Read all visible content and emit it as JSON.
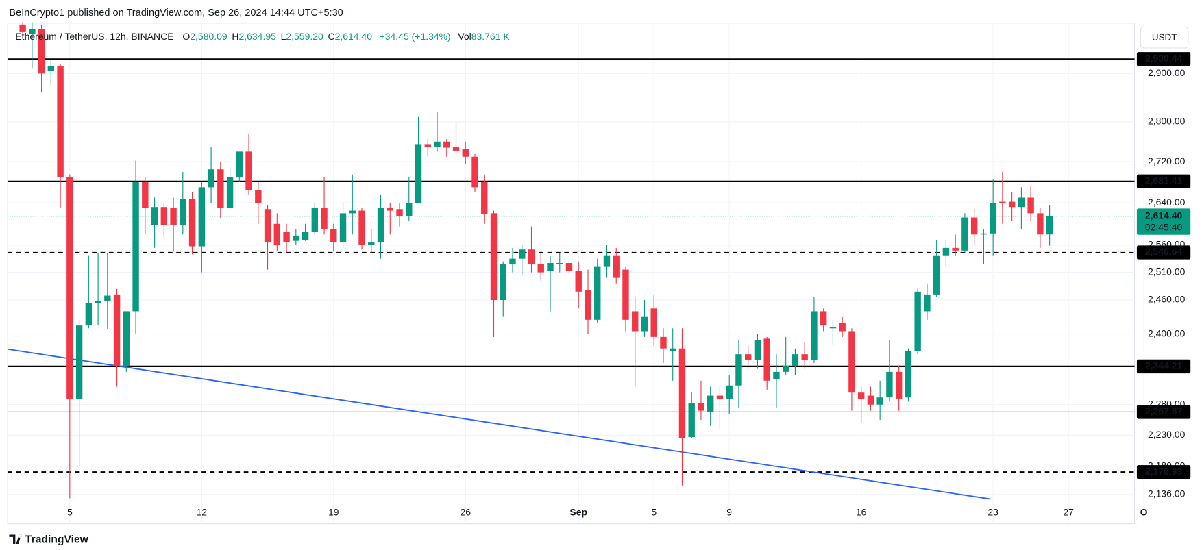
{
  "header": {
    "publisher": "BeInCrypto1 published on TradingView.com, Sep 26, 2024 14:44 UTC+5:30"
  },
  "chart_data": {
    "type": "candlestick",
    "symbol": "Ethereum / TetherUS, 12h, BINANCE",
    "ohlc_legend": [
      {
        "key": "O",
        "value": "2,580.09"
      },
      {
        "key": "H",
        "value": "2,634.95"
      },
      {
        "key": "L",
        "value": "2,559.20"
      },
      {
        "key": "C",
        "value": "2,614.40"
      }
    ],
    "change": "+34.45 (+1.34%)",
    "volume": {
      "key": "Vol",
      "value": "83.761 K"
    },
    "currency": "USDT",
    "up_color": "#089981",
    "down_color": "#f23645",
    "categories": [
      null,
      null,
      null,
      null,
      null,
      "5",
      null,
      null,
      null,
      null,
      null,
      null,
      null,
      null,
      null,
      null,
      null,
      null,
      null,
      "12",
      null,
      null,
      null,
      null,
      null,
      null,
      null,
      null,
      null,
      null,
      null,
      null,
      null,
      "19",
      null,
      null,
      null,
      null,
      null,
      null,
      null,
      null,
      null,
      null,
      null,
      null,
      null,
      "26",
      null,
      null,
      null,
      null,
      null,
      null,
      null,
      null,
      null,
      null,
      null,
      "Sep",
      null,
      null,
      null,
      null,
      null,
      null,
      null,
      "5",
      null,
      null,
      null,
      null,
      null,
      null,
      null,
      "9",
      null,
      null,
      null,
      null,
      null,
      null,
      null,
      null,
      null,
      null,
      null,
      null,
      null,
      "16",
      null,
      null,
      null,
      null,
      null,
      null,
      null,
      null,
      null,
      null,
      null,
      null,
      null,
      "23",
      null,
      null,
      null,
      null,
      null,
      null,
      null,
      "27",
      null,
      null,
      null,
      null,
      null,
      null,
      null,
      "O"
    ],
    "open": [
      3005,
      2985,
      2995,
      2905,
      2915,
      2690,
      2290,
      2415,
      2455,
      2458,
      2470,
      2345,
      2440,
      2680,
      2598,
      2632,
      2630,
      2598,
      2648,
      2558,
      2670,
      2705,
      2630,
      2690,
      2740,
      2665,
      2628,
      2600,
      2585,
      2568,
      2570,
      2585,
      2630,
      2590,
      2565,
      2620,
      2625,
      2560,
      2565,
      2630,
      2628,
      2615,
      2640,
      2755,
      2750,
      2760,
      2750,
      2745,
      2730,
      2680,
      2620,
      2460,
      2525,
      2535,
      2552,
      2525,
      2512,
      2525,
      2527,
      2512,
      2478,
      2425,
      2520,
      2540,
      2515,
      2440,
      2405,
      2445,
      2395,
      2370,
      2375,
      2227,
      2282,
      2268,
      2295,
      2290,
      2312,
      2365,
      2355,
      2392,
      2322,
      2335,
      2345,
      2365,
      2355,
      2440,
      2410,
      2420,
      2405,
      2300,
      2295,
      2280,
      2292,
      2335,
      2292,
      2370,
      2440,
      2470,
      2540,
      2555,
      2550,
      2612,
      2580,
      2582,
      2642,
      2642,
      2632,
      2650,
      2620,
      2580.09,
      null,
      null,
      null,
      null,
      null,
      null,
      null,
      null,
      null,
      null
    ],
    "high": [
      3010,
      3010,
      3005,
      2930,
      2920,
      2695,
      2425,
      2540,
      2545,
      2545,
      2480,
      2440,
      2722,
      2690,
      2650,
      2640,
      2650,
      2700,
      2660,
      2680,
      2750,
      2720,
      2710,
      2740,
      2775,
      2680,
      2635,
      2620,
      2600,
      2590,
      2600,
      2640,
      2690,
      2600,
      2640,
      2695,
      2630,
      2590,
      2655,
      2640,
      2640,
      2690,
      2810,
      2765,
      2820,
      2765,
      2800,
      2760,
      2735,
      2695,
      2625,
      2530,
      2555,
      2560,
      2595,
      2545,
      2540,
      2545,
      2535,
      2530,
      2515,
      2535,
      2560,
      2555,
      2520,
      2465,
      2460,
      2470,
      2410,
      2410,
      2410,
      2300,
      2320,
      2310,
      2310,
      2330,
      2390,
      2380,
      2400,
      2395,
      2365,
      2395,
      2375,
      2385,
      2465,
      2445,
      2425,
      2430,
      2410,
      2310,
      2310,
      2320,
      2390,
      2345,
      2375,
      2480,
      2490,
      2570,
      2570,
      2580,
      2620,
      2630,
      2590,
      2685,
      2700,
      2660,
      2670,
      2672,
      2630,
      2634.95,
      null,
      null,
      null,
      null,
      null,
      null,
      null,
      null,
      null,
      null
    ],
    "low": [
      2975,
      2910,
      2860,
      2875,
      2630,
      2130,
      2180,
      2410,
      2415,
      2408,
      2310,
      2335,
      2400,
      2580,
      2555,
      2575,
      2548,
      2580,
      2543,
      2510,
      2640,
      2610,
      2625,
      2680,
      2655,
      2600,
      2515,
      2550,
      2545,
      2560,
      2568,
      2580,
      2580,
      2548,
      2555,
      2580,
      2553,
      2545,
      2535,
      2580,
      2595,
      2605,
      2640,
      2730,
      2740,
      2730,
      2730,
      2715,
      2660,
      2600,
      2395,
      2430,
      2510,
      2505,
      2510,
      2495,
      2440,
      2510,
      2505,
      2445,
      2400,
      2420,
      2500,
      2490,
      2405,
      2310,
      2395,
      2380,
      2350,
      2320,
      2150,
      2225,
      2255,
      2245,
      2240,
      2265,
      2275,
      2340,
      2340,
      2305,
      2275,
      2330,
      2330,
      2340,
      2350,
      2405,
      2380,
      2395,
      2270,
      2250,
      2270,
      2255,
      2285,
      2270,
      2285,
      2365,
      2425,
      2465,
      2520,
      2540,
      2545,
      2560,
      2525,
      2540,
      2600,
      2605,
      2590,
      2605,
      2555,
      2559.2,
      null,
      null,
      null,
      null,
      null,
      null,
      null,
      null,
      null,
      null
    ],
    "close": [
      2990,
      2995,
      2900,
      2915,
      2690,
      2290,
      2415,
      2455,
      2458,
      2468,
      2344,
      2440,
      2680,
      2630,
      2632,
      2598,
      2598,
      2648,
      2558,
      2670,
      2705,
      2630,
      2690,
      2740,
      2665,
      2640,
      2565,
      2560,
      2565,
      2578,
      2585,
      2630,
      2590,
      2565,
      2620,
      2625,
      2560,
      2565,
      2630,
      2625,
      2615,
      2640,
      2755,
      2750,
      2760,
      2748,
      2742,
      2730,
      2670,
      2618,
      2460,
      2525,
      2535,
      2552,
      2525,
      2510,
      2527,
      2527,
      2512,
      2475,
      2425,
      2520,
      2540,
      2500,
      2425,
      2405,
      2430,
      2395,
      2375,
      2375,
      2225,
      2282,
      2270,
      2295,
      2290,
      2312,
      2365,
      2355,
      2390,
      2320,
      2335,
      2345,
      2365,
      2355,
      2440,
      2415,
      2412,
      2405,
      2300,
      2290,
      2280,
      2292,
      2335,
      2290,
      2370,
      2475,
      2470,
      2540,
      2555,
      2550,
      2612,
      2580,
      2582,
      2640,
      2640,
      2632,
      2650,
      2620,
      2580,
      2614.4,
      null,
      null,
      null,
      null,
      null,
      null,
      null,
      null,
      null,
      null
    ],
    "ylim": [
      2091,
      3008
    ],
    "log_scale": true,
    "grid": true,
    "yticks": [
      {
        "value": 2136,
        "label": "2,136.00"
      },
      {
        "value": 2180,
        "label": "2,180.00"
      },
      {
        "value": 2230,
        "label": "2,230.00"
      },
      {
        "value": 2280,
        "label": "2,280.00"
      },
      {
        "value": 2400,
        "label": "2,400.00"
      },
      {
        "value": 2460,
        "label": "2,460.00"
      },
      {
        "value": 2510,
        "label": "2,510.00"
      },
      {
        "value": 2560,
        "label": "2,560.00"
      },
      {
        "value": 2640,
        "label": "2,640.00"
      },
      {
        "value": 2720,
        "label": "2,720.00"
      },
      {
        "value": 2800,
        "label": "2,800.00"
      },
      {
        "value": 2900,
        "label": "2,900.00"
      }
    ],
    "price_lines": [
      {
        "value": 2930.44,
        "label": "2,930.44",
        "style": "solid",
        "width": 2
      },
      {
        "value": 2681.41,
        "label": "2,681.41",
        "style": "solid",
        "width": 2
      },
      {
        "value": 2546.64,
        "label": "2,546.64",
        "style": "dashed",
        "width": 1
      },
      {
        "value": 2344.21,
        "label": "2,344.21",
        "style": "solid",
        "width": 2
      },
      {
        "value": 2267.87,
        "label": "2,267.87",
        "style": "solid",
        "width": 1
      },
      {
        "value": 2170.93,
        "label": "2,170.93",
        "style": "dashed",
        "width": 2
      }
    ],
    "last_price": {
      "value": 2614.4,
      "label": "2,614.40",
      "countdown": "02:45:40",
      "color": "#089981"
    }
  },
  "footer": {
    "brand": "TradingView"
  }
}
